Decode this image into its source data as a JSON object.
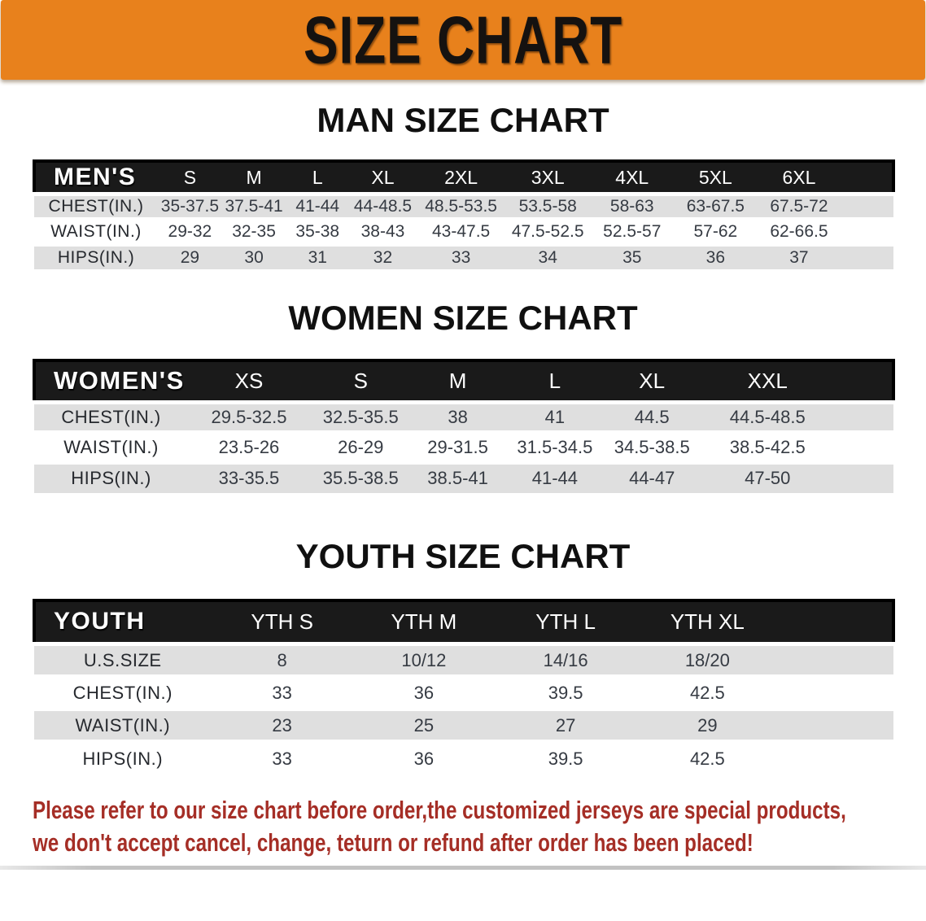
{
  "banner": {
    "title": "SIZE CHART"
  },
  "colors": {
    "banner_bg": "#E8811C",
    "table_header_bg": "#1A1A1A",
    "row_stripe": "#DFDFDF",
    "disclaimer_red": "#A52E26"
  },
  "sections": [
    {
      "heading": "MAN SIZE CHART",
      "table": {
        "header_label": "MEN'S",
        "columns": [
          "S",
          "M",
          "L",
          "XL",
          "2XL",
          "3XL",
          "4XL",
          "5XL",
          "6XL"
        ],
        "rows": [
          {
            "label": "CHEST(IN.)",
            "values": [
              "35-37.5",
              "37.5-41",
              "41-44",
              "44-48.5",
              "48.5-53.5",
              "53.5-58",
              "58-63",
              "63-67.5",
              "67.5-72"
            ]
          },
          {
            "label": "WAIST(IN.)",
            "values": [
              "29-32",
              "32-35",
              "35-38",
              "38-43",
              "43-47.5",
              "47.5-52.5",
              "52.5-57",
              "57-62",
              "62-66.5"
            ]
          },
          {
            "label": "HIPS(IN.)",
            "values": [
              "29",
              "30",
              "31",
              "32",
              "33",
              "34",
              "35",
              "36",
              "37"
            ]
          }
        ]
      }
    },
    {
      "heading": "WOMEN SIZE CHART",
      "table": {
        "header_label": "WOMEN'S",
        "columns": [
          "XS",
          "S",
          "M",
          "L",
          "XL",
          "XXL"
        ],
        "rows": [
          {
            "label": "CHEST(IN.)",
            "values": [
              "29.5-32.5",
              "32.5-35.5",
              "38",
              "41",
              "44.5",
              "44.5-48.5"
            ]
          },
          {
            "label": "WAIST(IN.)",
            "values": [
              "23.5-26",
              "26-29",
              "29-31.5",
              "31.5-34.5",
              "34.5-38.5",
              "38.5-42.5"
            ]
          },
          {
            "label": "HIPS(IN.)",
            "values": [
              "33-35.5",
              "35.5-38.5",
              "38.5-41",
              "41-44",
              "44-47",
              "47-50"
            ]
          }
        ]
      }
    },
    {
      "heading": "YOUTH SIZE CHART",
      "table": {
        "header_label": "YOUTH",
        "columns": [
          "YTH S",
          "YTH M",
          "YTH L",
          "YTH XL"
        ],
        "rows": [
          {
            "label": "U.S.SIZE",
            "values": [
              "8",
              "10/12",
              "14/16",
              "18/20"
            ]
          },
          {
            "label": "CHEST(IN.)",
            "values": [
              "33",
              "36",
              "39.5",
              "42.5"
            ]
          },
          {
            "label": "WAIST(IN.)",
            "values": [
              "23",
              "25",
              "27",
              "29"
            ]
          },
          {
            "label": "HIPS(IN.)",
            "values": [
              "33",
              "36",
              "39.5",
              "42.5"
            ]
          }
        ]
      }
    }
  ],
  "disclaimer": {
    "lines": [
      "Please refer to our size chart before order,the customized jerseys are special products,",
      "we don't accept cancel, change, teturn or refund after order has been placed!"
    ]
  }
}
